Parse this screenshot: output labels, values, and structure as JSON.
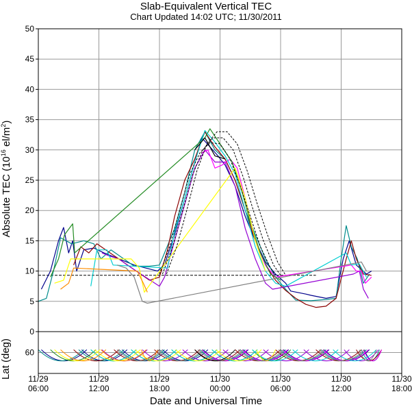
{
  "chart_data": {
    "type": "line",
    "title": "Slab-Equivalent Vertical TEC",
    "subtitle": "Chart Updated 14:02 UTC; 11/30/2011",
    "xlabel": "Date and Universal Time",
    "ylabel": {
      "prefix": "Absolute TEC (10",
      "sup1": "16",
      "mid": " el/m",
      "sup2": "2",
      "suffix": ")"
    },
    "ylabel_lat": "Lat (deg)",
    "x_ticks": [
      {
        "x": 0,
        "l1": "11/29",
        "l2": "06:00"
      },
      {
        "x": 6,
        "l1": "11/29",
        "l2": "12:00"
      },
      {
        "x": 12,
        "l1": "11/29",
        "l2": "18:00"
      },
      {
        "x": 18,
        "l1": "11/30",
        "l2": "00:00"
      },
      {
        "x": 24,
        "l1": "11/30",
        "l2": "06:00"
      },
      {
        "x": 30,
        "l1": "11/30",
        "l2": "12:00"
      },
      {
        "x": 36,
        "l1": "11/30",
        "l2": "18:00"
      }
    ],
    "x_unit": "hours since 11/29 06:00 UTC",
    "xlim": [
      0,
      36
    ],
    "ylim": [
      0,
      50
    ],
    "y_ticks": [
      0,
      5,
      10,
      15,
      20,
      25,
      30,
      35,
      40,
      45,
      50
    ],
    "lat_ticks": [
      60
    ],
    "lat_lim": [
      75,
      45
    ],
    "grid": true,
    "reference_line": {
      "y": 9.3,
      "x_end": 27.5,
      "style": "dashed"
    },
    "series": [
      {
        "color": "#00008b",
        "points": [
          [
            0.3,
            7
          ],
          [
            1.2,
            10
          ],
          [
            2.0,
            15
          ],
          [
            2.5,
            17.2
          ],
          [
            3.0,
            13
          ],
          [
            3.4,
            15
          ],
          [
            3.8,
            10
          ],
          [
            4.5,
            13.5
          ],
          [
            5.5,
            13.8
          ],
          [
            6.5,
            13
          ],
          [
            8,
            12
          ],
          [
            9.5,
            11
          ],
          [
            11.8,
            10
          ],
          [
            12.5,
            11
          ],
          [
            13.5,
            16
          ],
          [
            14.5,
            22
          ],
          [
            15.5,
            28
          ],
          [
            16.2,
            32
          ],
          [
            17,
            30.5
          ],
          [
            17.8,
            29
          ],
          [
            18.5,
            27.5
          ],
          [
            19.5,
            24
          ],
          [
            20.5,
            19
          ],
          [
            21.5,
            15
          ],
          [
            22.5,
            11.5
          ],
          [
            23.5,
            9.5
          ],
          [
            24.5,
            8
          ],
          [
            25,
            6.7
          ],
          [
            26.5,
            6.2
          ],
          [
            27,
            6
          ],
          [
            28.5,
            5.5
          ],
          [
            29.5,
            5.8
          ],
          [
            30.2,
            12
          ],
          [
            30.8,
            15
          ],
          [
            31.5,
            11
          ],
          [
            32.5,
            9.5
          ],
          [
            33,
            10
          ]
        ]
      },
      {
        "color": "#008b8b",
        "points": [
          [
            0,
            5
          ],
          [
            0.8,
            5.5
          ],
          [
            1.5,
            10
          ],
          [
            2.2,
            15.5
          ],
          [
            3.3,
            14.5
          ],
          [
            4.5,
            15
          ],
          [
            5.5,
            14.5
          ],
          [
            6.2,
            12
          ],
          [
            7.2,
            13.5
          ],
          [
            9.5,
            10.8
          ],
          [
            11,
            10.8
          ],
          [
            12,
            11
          ],
          [
            12.5,
            13
          ],
          [
            13.5,
            17
          ],
          [
            14.5,
            23
          ],
          [
            15.5,
            30
          ],
          [
            16.5,
            33
          ],
          [
            17.5,
            30
          ],
          [
            18.5,
            28.5
          ],
          [
            19.5,
            25
          ],
          [
            20.5,
            20
          ],
          [
            21.5,
            16
          ],
          [
            22.5,
            12
          ],
          [
            23.5,
            9
          ],
          [
            24.5,
            7
          ],
          [
            25.5,
            5.2
          ],
          [
            27,
            5.1
          ],
          [
            28.5,
            5.3
          ],
          [
            29.5,
            5.5
          ],
          [
            30,
            12
          ],
          [
            30.5,
            17.5
          ],
          [
            31,
            14
          ],
          [
            31.6,
            12
          ],
          [
            32.2,
            8
          ],
          [
            32.8,
            9.5
          ]
        ]
      },
      {
        "color": "#8b0000",
        "points": [
          [
            3.5,
            11
          ],
          [
            4.2,
            14
          ],
          [
            5,
            13
          ],
          [
            5.8,
            14.5
          ],
          [
            11,
            8.5
          ],
          [
            12,
            9
          ],
          [
            12.8,
            13.5
          ],
          [
            13.5,
            19
          ],
          [
            14.5,
            25
          ],
          [
            15.5,
            28.5
          ],
          [
            16.5,
            33
          ],
          [
            17.5,
            30.5
          ],
          [
            18.5,
            28.5
          ],
          [
            19.5,
            25
          ],
          [
            20.5,
            20
          ],
          [
            21.5,
            15
          ],
          [
            22.5,
            11
          ],
          [
            23.5,
            8.5
          ],
          [
            24.5,
            6.8
          ],
          [
            25.5,
            5.5
          ],
          [
            26.5,
            4.5
          ],
          [
            27.5,
            4
          ],
          [
            28.5,
            4.2
          ],
          [
            29.5,
            5.5
          ],
          [
            30.5,
            12
          ],
          [
            31,
            15
          ],
          [
            31.5,
            12
          ],
          [
            32.2,
            9.5
          ],
          [
            33,
            9.3
          ]
        ]
      },
      {
        "color": "#9400d3",
        "points": [
          [
            6.3,
            13
          ],
          [
            7,
            12.5
          ],
          [
            8,
            12
          ],
          [
            8.8,
            11
          ],
          [
            12,
            7.5
          ],
          [
            12.5,
            9
          ],
          [
            13.5,
            15
          ],
          [
            14.5,
            21
          ],
          [
            15.5,
            27
          ],
          [
            16.5,
            30
          ],
          [
            17.5,
            28
          ],
          [
            18.5,
            28
          ],
          [
            19.5,
            24
          ],
          [
            20.5,
            17
          ],
          [
            21.5,
            12
          ],
          [
            22.5,
            8
          ],
          [
            23.2,
            7
          ],
          [
            31.2,
            9.5
          ],
          [
            31.8,
            10
          ],
          [
            32.2,
            7
          ],
          [
            32.7,
            5.5
          ]
        ]
      },
      {
        "color": "#ff00ff",
        "points": [
          [
            16.2,
            29.5
          ],
          [
            16.8,
            30
          ],
          [
            17.5,
            27
          ],
          [
            18.2,
            27.5
          ],
          [
            19,
            28.5
          ],
          [
            19.7,
            27
          ],
          [
            20.5,
            22
          ],
          [
            21.5,
            15
          ],
          [
            22.5,
            11
          ],
          [
            23.5,
            9
          ],
          [
            31,
            11
          ],
          [
            31.5,
            10
          ],
          [
            32,
            10
          ],
          [
            32.4,
            8
          ],
          [
            33,
            9
          ]
        ]
      },
      {
        "color": "#228b22",
        "points": [
          [
            1.2,
            9
          ],
          [
            2,
            12
          ],
          [
            2.6,
            16
          ],
          [
            3.4,
            17.8
          ],
          [
            3.6,
            13
          ],
          [
            16.5,
            32
          ],
          [
            17,
            33.5
          ],
          [
            18,
            31
          ],
          [
            19.2,
            28
          ],
          [
            20.2,
            23
          ],
          [
            21,
            18
          ],
          [
            22,
            13
          ],
          [
            23,
            9.5
          ],
          [
            24,
            8.5
          ]
        ]
      },
      {
        "color": "#00ced1",
        "points": [
          [
            5.2,
            7.5
          ],
          [
            5.8,
            13.5
          ],
          [
            6.8,
            13.5
          ],
          [
            7.4,
            11
          ],
          [
            12.8,
            10.5
          ],
          [
            13.5,
            16.5
          ],
          [
            14.5,
            22
          ],
          [
            15.5,
            28
          ],
          [
            16.5,
            33.2
          ],
          [
            17.4,
            31.5
          ],
          [
            18.5,
            29
          ],
          [
            19.5,
            26
          ],
          [
            20.5,
            20
          ],
          [
            21.5,
            14
          ],
          [
            22.5,
            10
          ],
          [
            23.5,
            8
          ],
          [
            24.5,
            7.5
          ],
          [
            30.5,
            13
          ],
          [
            31,
            11
          ],
          [
            31.8,
            11.2
          ],
          [
            32.5,
            9
          ]
        ]
      },
      {
        "color": "#ffff00",
        "points": [
          [
            1.6,
            8
          ],
          [
            2.5,
            8.5
          ],
          [
            2.7,
            9.5
          ],
          [
            3.2,
            12
          ],
          [
            9.2,
            12
          ],
          [
            10,
            10.5
          ],
          [
            10.5,
            6.5
          ],
          [
            19.5,
            27
          ],
          [
            20.5,
            22
          ],
          [
            21.5,
            15
          ],
          [
            22.5,
            10
          ]
        ]
      },
      {
        "color": "#ff8c00",
        "points": [
          [
            2.2,
            7
          ],
          [
            3,
            8
          ],
          [
            3.5,
            10.5
          ],
          [
            9.8,
            10
          ],
          [
            10.4,
            8
          ],
          [
            10.8,
            6.5
          ]
        ]
      },
      {
        "color": "#808080",
        "points": [
          [
            7.8,
            11
          ],
          [
            8.7,
            10.5
          ],
          [
            9.5,
            9
          ],
          [
            10,
            6.5
          ],
          [
            10.3,
            5
          ],
          [
            10.8,
            4.7
          ],
          [
            32,
            11.5
          ],
          [
            32.5,
            10
          ]
        ]
      },
      {
        "color": "#000000",
        "points": [
          [
            15.5,
            30
          ],
          [
            16.5,
            32
          ],
          [
            17.5,
            29
          ],
          [
            18.5,
            28.5
          ]
        ]
      }
    ],
    "model_curves": [
      {
        "style": "dashed",
        "points": [
          [
            12,
            9.5
          ],
          [
            13,
            14
          ],
          [
            14,
            20
          ],
          [
            15,
            26
          ],
          [
            16,
            29.5
          ],
          [
            17,
            31.2
          ],
          [
            18,
            31
          ],
          [
            19,
            28.5
          ],
          [
            20,
            24
          ],
          [
            21,
            19
          ],
          [
            22,
            14
          ],
          [
            23,
            10.5
          ],
          [
            23.5,
            9.3
          ]
        ]
      },
      {
        "style": "dashed",
        "points": [
          [
            12.3,
            9.5
          ],
          [
            13.3,
            14
          ],
          [
            14.3,
            20
          ],
          [
            15.3,
            26
          ],
          [
            16.3,
            30
          ],
          [
            17.3,
            32
          ],
          [
            18.3,
            32
          ],
          [
            19.3,
            30
          ],
          [
            20.3,
            25.5
          ],
          [
            21.3,
            20
          ],
          [
            22.3,
            15
          ],
          [
            23.3,
            11
          ],
          [
            24,
            9.3
          ]
        ]
      },
      {
        "style": "dashed",
        "points": [
          [
            12.7,
            9.5
          ],
          [
            13.7,
            14
          ],
          [
            14.7,
            20
          ],
          [
            15.7,
            26.5
          ],
          [
            16.7,
            31
          ],
          [
            17.7,
            33
          ],
          [
            18.7,
            33
          ],
          [
            19.7,
            31
          ],
          [
            20.7,
            26.5
          ],
          [
            21.7,
            21
          ],
          [
            22.7,
            16
          ],
          [
            23.7,
            11.5
          ],
          [
            24.5,
            9.3
          ]
        ]
      }
    ]
  }
}
